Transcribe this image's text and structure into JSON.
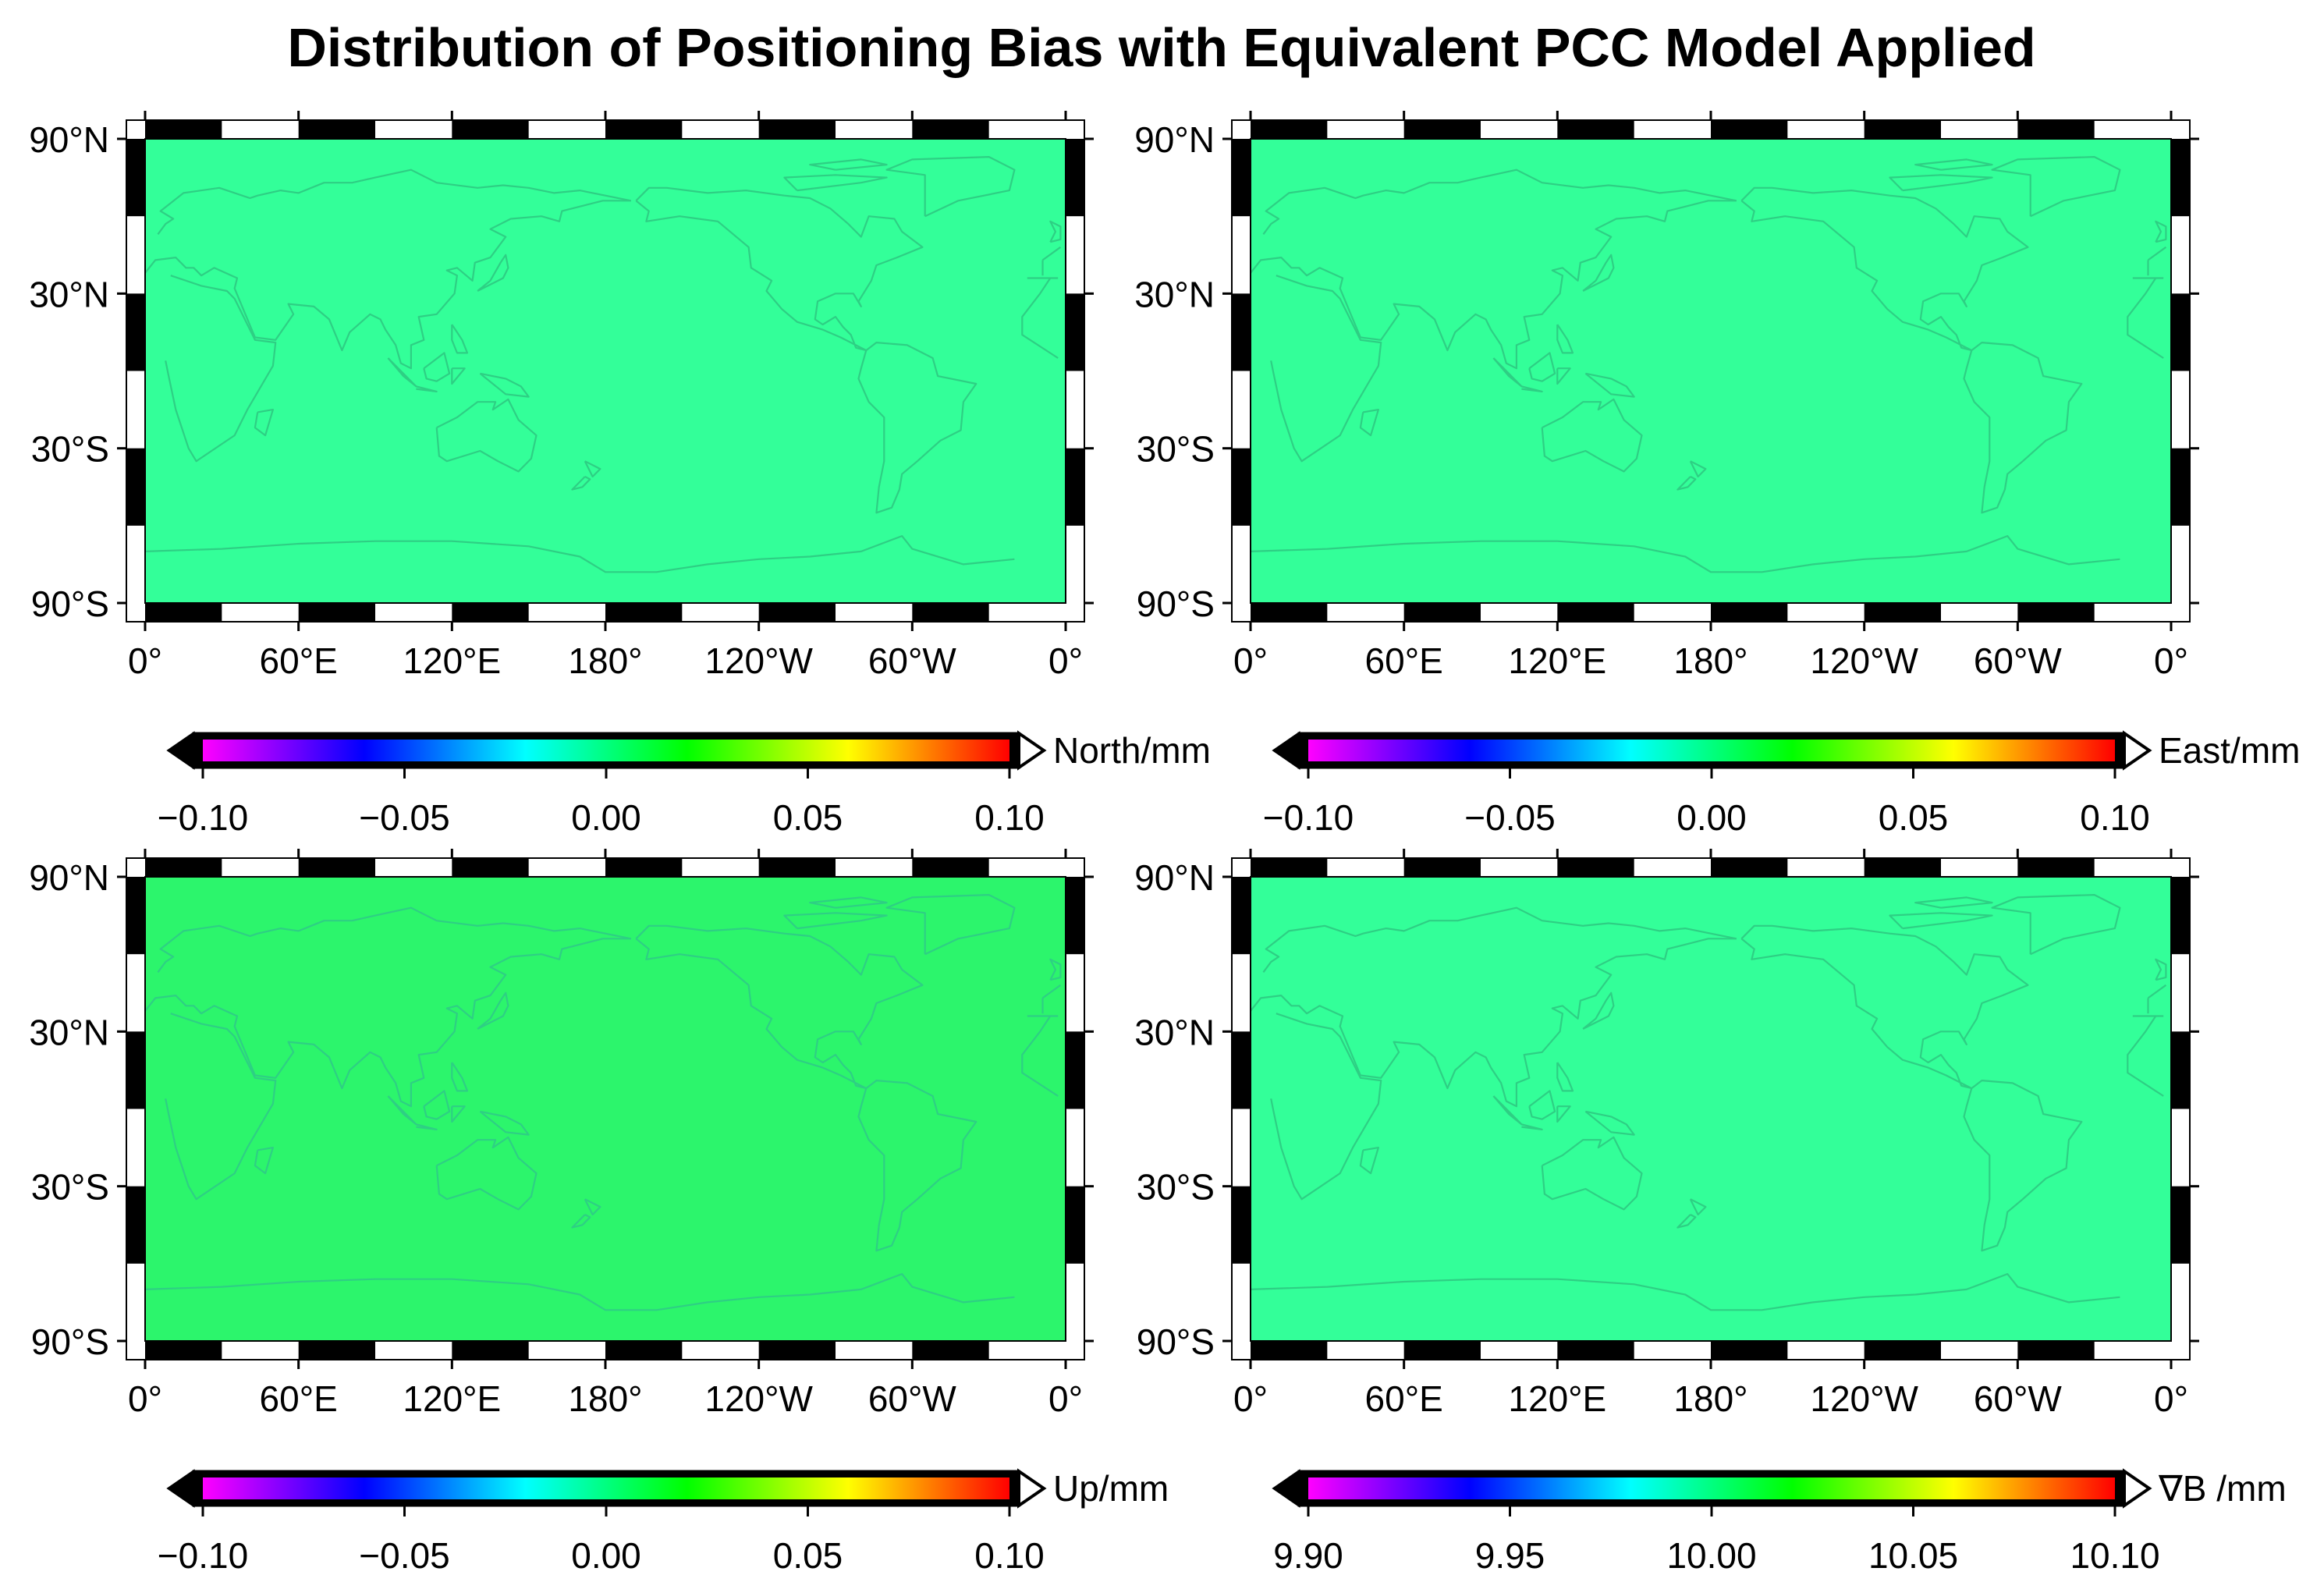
{
  "title": "Distribution of Positioning Bias with Equivalent PCC Model Applied",
  "map": {
    "lat_labels": [
      "90°N",
      "30°N",
      "30°S",
      "90°S"
    ],
    "lon_labels": [
      "0°",
      "60°E",
      "120°E",
      "180°",
      "120°W",
      "60°W",
      "0°"
    ],
    "coastline_color": "#2ecf84"
  },
  "panels": [
    {
      "name": "north",
      "label": "North/mm",
      "fill_color": "#33ff99",
      "cbar_ticks": [
        "−0.10",
        "−0.05",
        "0.00",
        "0.05",
        "0.10"
      ]
    },
    {
      "name": "east",
      "label": "East/mm",
      "fill_color": "#33ff99",
      "cbar_ticks": [
        "−0.10",
        "−0.05",
        "0.00",
        "0.05",
        "0.10"
      ]
    },
    {
      "name": "up",
      "label": "Up/mm",
      "fill_color": "#2cf56c",
      "cbar_ticks": [
        "−0.10",
        "−0.05",
        "0.00",
        "0.05",
        "0.10"
      ]
    },
    {
      "name": "nablab",
      "label": "∇B /mm",
      "fill_color": "#33ff99",
      "cbar_ticks": [
        "9.90",
        "9.95",
        "10.00",
        "10.05",
        "10.10"
      ]
    }
  ],
  "colormap": [
    "#ff00ff",
    "#0000ff",
    "#00ffff",
    "#00ff00",
    "#ffff00",
    "#ff0000"
  ]
}
